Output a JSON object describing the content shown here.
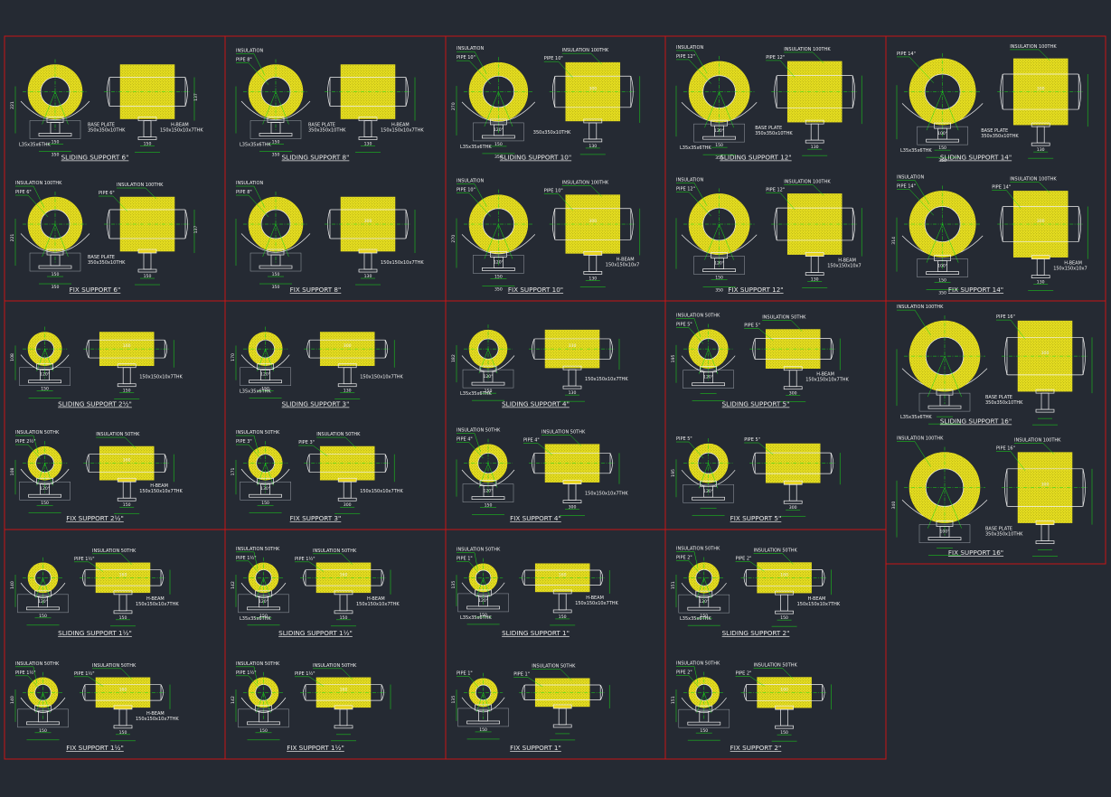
{
  "colors": {
    "background": "#252a33",
    "frame": "#c81414",
    "insulation": "#e8e020",
    "insulation_dot": "#7a7608",
    "leader": "#18e018",
    "outline": "#f0f0f0",
    "pad": "#e8d420"
  },
  "panels": [
    {
      "col": 0,
      "row": 0,
      "scale": 1.0,
      "top": {
        "title": "SLIDING SUPPORT 6\"",
        "ins": "",
        "pipe": "",
        "plate": "BASE PLATE",
        "plate_size": "350x350x10THK",
        "angle": "L35x35x6THK",
        "beam": "H-BEAM",
        "beam_size": "150x150x10x7THK",
        "d1": "150",
        "d2": "350",
        "d3": "150",
        "h1": "221",
        "h2": "137"
      },
      "bot": {
        "title": "FIX SUPPORT 6\"",
        "ins": "INSULATION 100THK",
        "pipe": "PIPE 6\"",
        "ins2": "INSULATION 100THK",
        "pipe2": "PIPE 6\"",
        "plate": "BASE PLATE",
        "plate_size": "350x350x10THK",
        "d1": "150",
        "d2": "350",
        "d3": "150",
        "h1": "221",
        "h2": "137"
      }
    },
    {
      "col": 1,
      "row": 0,
      "scale": 1.0,
      "top": {
        "title": "SLIDING SUPPORT 8\"",
        "ins": "INSULATION",
        "pipe": "PIPE 8\"",
        "plate": "BASE PLATE",
        "plate_size": "350x350x10THK",
        "angle": "L35x35x6THK",
        "beam": "H-BEAM",
        "beam_size": "150x150x10x7THK",
        "d1": "150",
        "d2": "350",
        "d3": "130"
      },
      "bot": {
        "title": "FIX SUPPORT 8\"",
        "ins": "INSULATION",
        "pipe": "PIPE 8\"",
        "ins2": "",
        "pipe2": "",
        "d1": "150",
        "d2": "350",
        "d3": "130",
        "dim": "300",
        "beam_size": "150x150x10x7THK"
      }
    },
    {
      "col": 2,
      "row": 0,
      "scale": 1.08,
      "top": {
        "title": "SLIDING SUPPORT 10\"",
        "ins": "INSULATION",
        "pipe": "PIPE 10\"",
        "ins2": "INSULATION 100THK",
        "pipe2": "PIPE 10\"",
        "plate_size": "350x350x10THK",
        "angle": "L35x35x6THK",
        "d1": "150",
        "d2": "350",
        "d3": "130",
        "dim": "300",
        "angle_deg": "120°",
        "h1": "270"
      },
      "bot": {
        "title": "FIX SUPPORT 10\"",
        "ins": "INSULATION",
        "pipe": "PIPE 10\"",
        "ins2": "INSULATION 100THK",
        "pipe2": "PIPE 10\"",
        "beam": "H-BEAM",
        "beam_size": "150x150x10x7",
        "d1": "150",
        "d2": "350",
        "d3": "130",
        "dim": "300",
        "angle_deg": "120°",
        "h1": "270"
      }
    },
    {
      "col": 3,
      "row": 0,
      "scale": 1.12,
      "top": {
        "title": "SLIDING SUPPORT 12\"",
        "ins": "INSULATION",
        "pipe": "PIPE 12\"",
        "ins2": "INSULATION 100THK",
        "pipe2": "PIPE 12\"",
        "plate": "BASE PLATE",
        "plate_size": "350x350x10THK",
        "angle": "L35x35x6THK",
        "d1": "150",
        "d2": "350",
        "d3": "130",
        "angle_deg": "120°"
      },
      "bot": {
        "title": "FIX SUPPORT 12\"",
        "ins": "INSULATION",
        "pipe": "PIPE 12\"",
        "ins2": "INSULATION 100THK",
        "pipe2": "PIPE 12\"",
        "beam": "H-BEAM",
        "beam_size": "150x150x10x7",
        "d1": "150",
        "d2": "350",
        "d3": "130",
        "angle_deg": "120°"
      }
    },
    {
      "col": 4,
      "row": 0,
      "scale": 1.22,
      "top": {
        "title": "SLIDING SUPPORT 14\"",
        "ins": "",
        "pipe": "PIPE 14\"",
        "ins2": "INSULATION 100THK",
        "pipe2": "",
        "plate": "BASE PLATE",
        "plate_size": "350x350x10THK",
        "angle": "L35x35x6THK",
        "d1": "150",
        "d2": "350",
        "d3": "130",
        "dim": "300",
        "angle_deg": "100°"
      },
      "bot": {
        "title": "FIX SUPPORT 14\"",
        "ins": "INSULATION",
        "pipe": "PIPE 14\"",
        "ins2": "INSULATION 100THK",
        "pipe2": "PIPE 14\"",
        "beam": "H-BEAM",
        "beam_size": "150x150x10x7",
        "d1": "150",
        "d2": "350",
        "d3": "130",
        "dim": "300",
        "angle_deg": "100°",
        "h1": "314"
      }
    },
    {
      "col": 0,
      "row": 1,
      "scale": 0.62,
      "top": {
        "title": "SLIDING SUPPORT 2½\"",
        "ins": "",
        "pipe": "",
        "d1": "150",
        "d3": "150",
        "dim": "160",
        "angle_deg": "120°",
        "beam_size": "150x150x10x7THK",
        "h1": "108"
      },
      "bot": {
        "title": "FIX SUPPORT 2½\"",
        "ins": "INSULATION 50THK",
        "pipe": "PIPE 2½\"",
        "ins2": "INSULATION 50THK",
        "pipe2": "",
        "beam": "H-BEAM",
        "beam_size": "150x150x10x7THK",
        "d1": "150",
        "d3": "150",
        "dim": "160",
        "angle_deg": "120°",
        "h1": "108"
      }
    },
    {
      "col": 1,
      "row": 1,
      "scale": 0.62,
      "top": {
        "title": "SLIDING SUPPORT 3\"",
        "ins": "",
        "pipe": "",
        "d1": "150",
        "d3": "130",
        "dim": "300",
        "angle_deg": "120°",
        "angle": "L35x35x6THK",
        "beam_size": "150x150x10x7THK",
        "h1": "170"
      },
      "bot": {
        "title": "FIX SUPPORT 3\"",
        "ins": "INSULATION 50THK",
        "pipe": "PIPE 3\"",
        "ins2": "INSULATION 50THK",
        "pipe2": "PIPE 3\"",
        "d1": "150",
        "d3": "300",
        "angle_deg": "130°",
        "beam_size": "150x150x10x7THK",
        "h1": "171"
      }
    },
    {
      "col": 2,
      "row": 1,
      "scale": 0.7,
      "top": {
        "title": "SLIDING SUPPORT 4\"",
        "ins": "",
        "pipe": "",
        "d1": "150",
        "d3": "130",
        "dim": "330",
        "angle_deg": "120°",
        "angle": "L35x35x6THK",
        "beam_size": "150x150x10x7THK",
        "h1": "182"
      },
      "bot": {
        "title": "FIX SUPPORT 4\"",
        "ins": "INSULATION 50THK",
        "pipe": "PIPE 4\"",
        "ins2": "INSULATION 50THK",
        "pipe2": "PIPE 4\"",
        "d1": "150",
        "d3": "300",
        "angle_deg": "120°",
        "beam_size": "150x150x10x7THK"
      }
    },
    {
      "col": 3,
      "row": 1,
      "scale": 0.72,
      "top": {
        "title": "SLIDING SUPPORT 5\"",
        "ins": "INSULATION 50THK",
        "pipe": "PIPE 5\"",
        "ins2": "INSULATION 50THK",
        "pipe2": "PIPE 5\"",
        "beam": "H-BEAM",
        "beam_size": "150x150x10x7THK",
        "d3": "300",
        "angle_deg": "120°",
        "h1": "195"
      },
      "bot": {
        "title": "FIX SUPPORT 5\"",
        "ins": "",
        "pipe": "PIPE 5\"",
        "ins2": "",
        "pipe2": "PIPE 5\"",
        "d3": "300",
        "angle_deg": "120°",
        "h1": "195"
      }
    },
    {
      "col": 4,
      "row": 1,
      "scale": 1.3,
      "top": {
        "title": "SLIDING SUPPORT 16\"",
        "ins": "INSULATION 100THK",
        "pipe": "",
        "ins2": "",
        "pipe2": "PIPE 16\"",
        "plate": "BASE PLATE",
        "plate_size": "350x350x10THK",
        "angle": "L35x35x6THK",
        "dim": "300"
      },
      "bot": {
        "title": "FIX SUPPORT 16\"",
        "ins": "INSULATION 100THK",
        "pipe": "",
        "ins2": "INSULATION 100THK",
        "pipe2": "PIPE 16\"",
        "plate": "BASE PLATE",
        "plate_size": "350x350x10THK",
        "dim": "300",
        "angle_deg": "100°",
        "h1": "340"
      }
    },
    {
      "col": 0,
      "row": 2,
      "scale": 0.55,
      "top": {
        "title": "SLIDING SUPPORT 1½\"",
        "ins": "",
        "pipe": "",
        "ins2": "INSULATION 50THK",
        "pipe2": "PIPE 1½\"",
        "beam": "H-BEAM",
        "beam_size": "150x150x10x7THK",
        "d1": "150",
        "d3": "150",
        "dim": "160",
        "angle_deg": "120°",
        "h1": "140"
      },
      "bot": {
        "title": "FIX SUPPORT 1½\"",
        "ins": "INSULATION 50THK",
        "pipe": "PIPE 1½\"",
        "ins2": "INSULATION 50THK",
        "pipe2": "PIPE 1½\"",
        "beam": "H-BEAM",
        "beam_size": "150x150x10x7THK",
        "d1": "150",
        "d3": "150",
        "dim": "160",
        "h1": "140"
      }
    },
    {
      "col": 1,
      "row": 2,
      "scale": 0.55,
      "top": {
        "title": "SLIDING SUPPORT 1½\"",
        "ins": "INSULATION 50THK",
        "pipe": "PIPE 1½\"",
        "ins2": "INSULATION 50THK",
        "pipe2": "PIPE 1½\"",
        "beam": "H-BEAM",
        "beam_size": "150x150x10x7THK",
        "angle": "L35x35x6THK",
        "d1": "150",
        "d3": "150",
        "dim": "160",
        "angle_deg": "120°",
        "h1": "142"
      },
      "bot": {
        "title": "FIX SUPPORT 1½\"",
        "ins": "INSULATION 50THK",
        "pipe": "PIPE 1½\"",
        "ins2": "INSULATION 50THK",
        "pipe2": "PIPE 1½\"",
        "d1": "150",
        "dim": "160",
        "h1": "142"
      }
    },
    {
      "col": 2,
      "row": 2,
      "scale": 0.52,
      "top": {
        "title": "SLIDING SUPPORT 1\"",
        "ins": "INSULATION 50THK",
        "pipe": "PIPE 1\"",
        "ins2": "",
        "pipe2": "",
        "beam": "H-BEAM",
        "beam_size": "150x150x10x7THK",
        "angle": "L35x35x6THK",
        "d1": "150",
        "d3": "150",
        "dim": "160",
        "angle_deg": "120°",
        "h1": "135"
      },
      "bot": {
        "title": "FIX SUPPORT 1\"",
        "ins": "",
        "pipe": "PIPE 1\"",
        "ins2": "INSULATION 50THK",
        "pipe2": "PIPE 1\"",
        "d1": "150",
        "h1": "135"
      }
    },
    {
      "col": 3,
      "row": 2,
      "scale": 0.56,
      "top": {
        "title": "SLIDING SUPPORT 2\"",
        "ins": "INSULATION 50THK",
        "pipe": "PIPE 2\"",
        "ins2": "INSULATION 50THK",
        "pipe2": "PIPE 2\"",
        "beam": "H-BEAM",
        "beam_size": "150x150x10x7THK",
        "angle": "L35x35x6THK",
        "d1": "150",
        "d3": "150",
        "dim": "160",
        "angle_deg": "120°",
        "h1": "151"
      },
      "bot": {
        "title": "FIX SUPPORT 2\"",
        "ins": "INSULATION 50THK",
        "pipe": "PIPE 2\"",
        "ins2": "INSULATION 50THK",
        "pipe2": "PIPE 2\"",
        "d1": "150",
        "d3": "150",
        "dim": "160",
        "h1": "151"
      }
    }
  ]
}
